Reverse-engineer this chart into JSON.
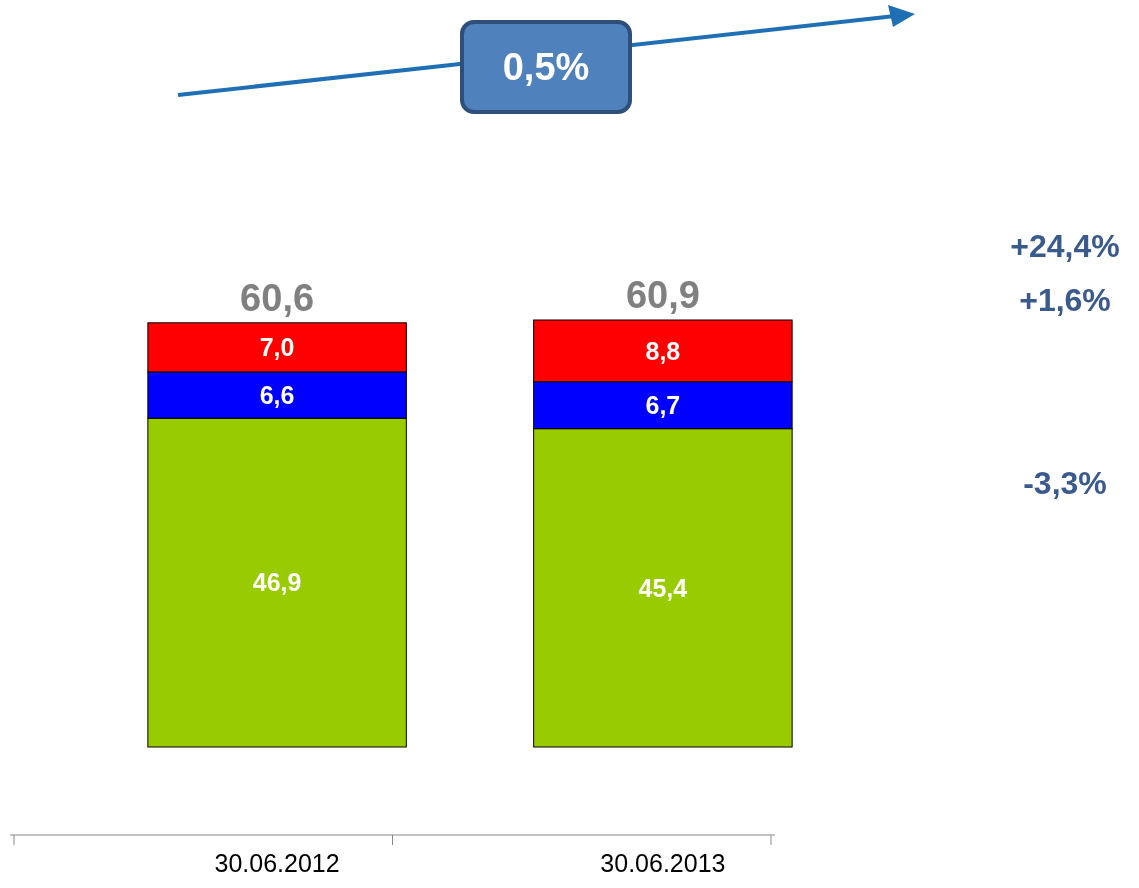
{
  "chart_data": {
    "type": "bar",
    "stacked": true,
    "categories": [
      "30.06.2012",
      "30.06.2013"
    ],
    "series": [
      {
        "color": "#99cc00",
        "values": [
          46.9,
          45.4
        ],
        "value_labels": [
          "46,9",
          "45,4"
        ]
      },
      {
        "color": "#0000ff",
        "values": [
          6.6,
          6.7
        ],
        "value_labels": [
          "6,6",
          "6,7"
        ]
      },
      {
        "color": "#ff0000",
        "values": [
          7.0,
          8.8
        ],
        "value_labels": [
          "7,0",
          "8,8"
        ]
      }
    ],
    "totals": [
      "60,6",
      "60,9"
    ],
    "annotations": [
      "0,5%",
      "+24,4%",
      "+1,6%",
      "-3,3%"
    ]
  }
}
